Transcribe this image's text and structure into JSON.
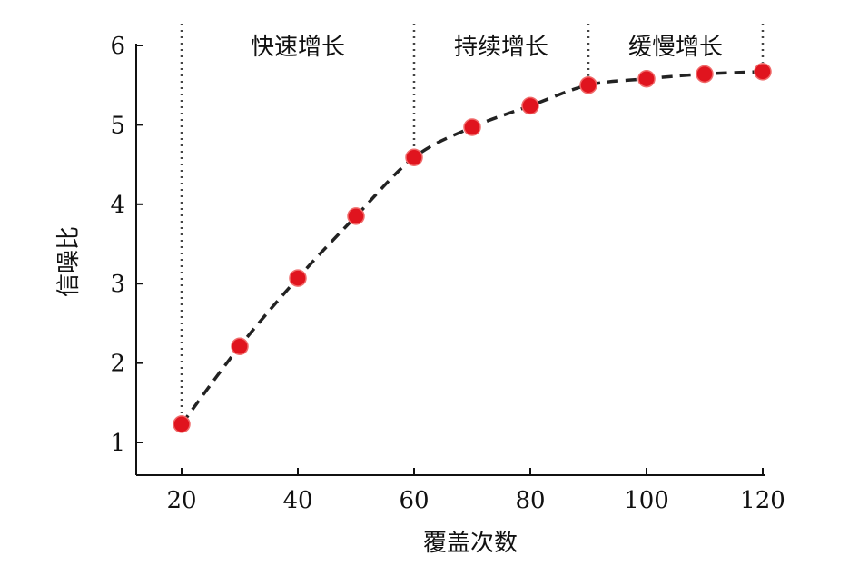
{
  "chart_data": {
    "type": "scatter",
    "title": "",
    "xlabel": "覆盖次数",
    "ylabel": "信噪比",
    "xlim": [
      12.2,
      120
    ],
    "ylim": [
      0.6,
      6
    ],
    "xticks": [
      20,
      40,
      60,
      80,
      100,
      120
    ],
    "yticks": [
      1,
      2,
      3,
      4,
      5,
      6
    ],
    "x": [
      20,
      30,
      40,
      50,
      60,
      70,
      80,
      90,
      100,
      110,
      120
    ],
    "y": [
      1.23,
      2.21,
      3.07,
      3.85,
      4.59,
      4.97,
      5.24,
      5.5,
      5.58,
      5.64,
      5.67
    ],
    "point_color": "#e0141e",
    "curve": "dashed fit line",
    "dividers": [
      20,
      60,
      90,
      120
    ],
    "regions": [
      {
        "label": "快速增长",
        "from": 20,
        "to": 60
      },
      {
        "label": "持续增长",
        "from": 60,
        "to": 90
      },
      {
        "label": "缓慢增长",
        "from": 90,
        "to": 120
      }
    ],
    "grid": false
  }
}
